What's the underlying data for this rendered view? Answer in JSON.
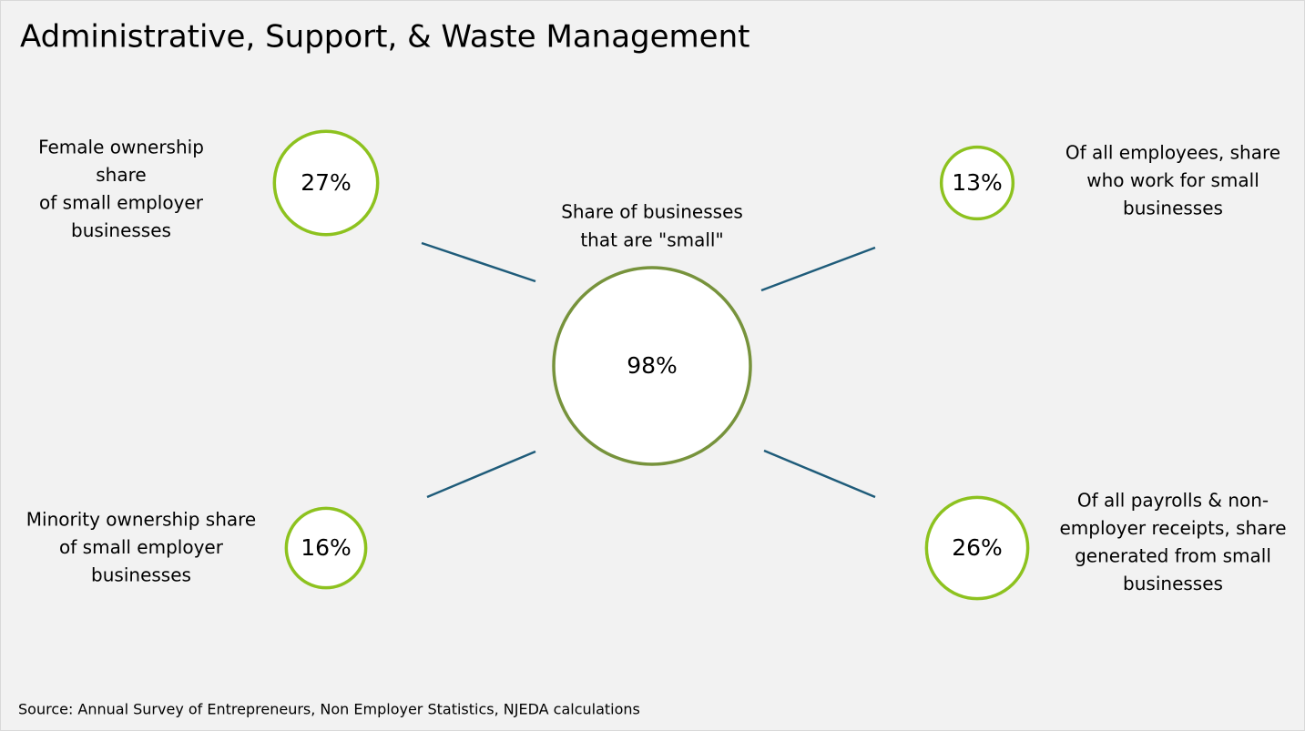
{
  "header": {
    "title": "Administrative, Support, & Waste Management"
  },
  "center": {
    "label_lines": [
      "Share of businesses",
      "that are \"small\""
    ],
    "value": 98,
    "value_label": "98%"
  },
  "nodes": [
    {
      "label_lines": [
        "Female ownership",
        "share",
        "of small employer",
        "businesses"
      ],
      "value": 27,
      "value_label": "27%"
    },
    {
      "label_lines": [
        "Of all employees, share",
        "who work for small",
        "businesses"
      ],
      "value": 13,
      "value_label": "13%"
    },
    {
      "label_lines": [
        "Minority ownership share",
        "of small employer",
        "businesses"
      ],
      "value": 16,
      "value_label": "16%"
    },
    {
      "label_lines": [
        "Of all payrolls & non-",
        "employer receipts, share",
        "generated from small",
        "businesses"
      ],
      "value": 26,
      "value_label": "26%"
    }
  ],
  "footer": {
    "source": "Source: Annual Survey of Entrepreneurs, Non Employer Statistics, NJEDA calculations"
  }
}
